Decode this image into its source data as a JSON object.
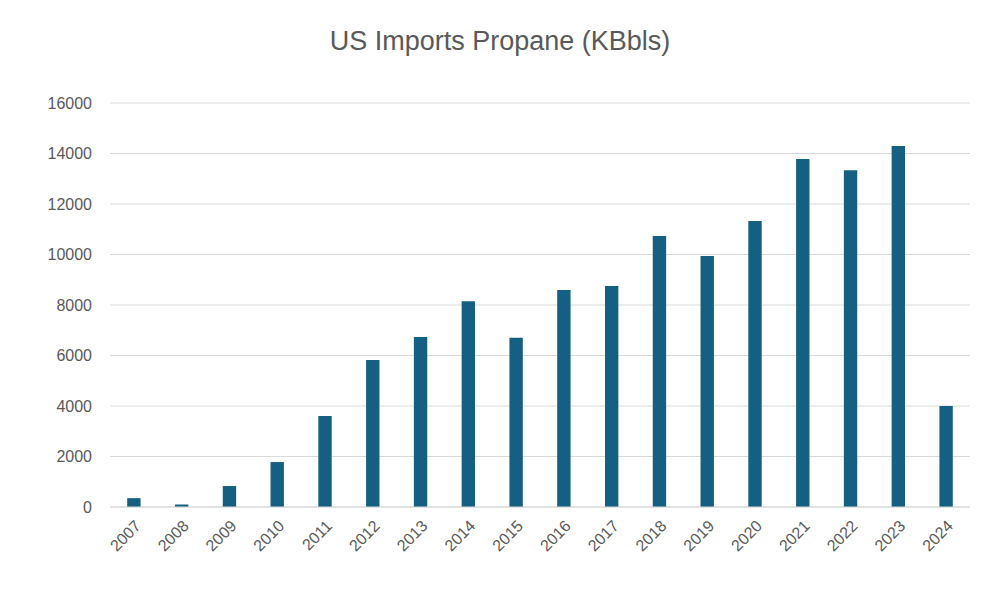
{
  "chart_data": {
    "type": "bar",
    "title": "US Imports Propane (KBbls)",
    "categories": [
      "2007",
      "2008",
      "2009",
      "2010",
      "2011",
      "2012",
      "2013",
      "2014",
      "2015",
      "2016",
      "2017",
      "2018",
      "2019",
      "2020",
      "2021",
      "2022",
      "2023",
      "2024"
    ],
    "values": [
      350,
      100,
      830,
      1780,
      3600,
      5820,
      6730,
      8150,
      6700,
      8590,
      8750,
      10730,
      9940,
      11330,
      13780,
      13340,
      14300,
      4000
    ],
    "color": "#156082",
    "ylim": [
      0,
      16000
    ],
    "yticks": [
      0,
      2000,
      4000,
      6000,
      8000,
      10000,
      12000,
      14000,
      16000
    ],
    "grid": true
  }
}
